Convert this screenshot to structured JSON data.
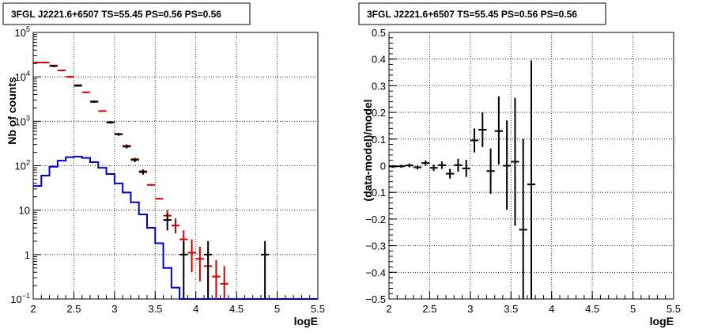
{
  "chart_data": [
    {
      "type": "histogram-with-errorbars",
      "title": "3FGL J2221.6+6507 TS=55.45 PS=0.56 PS=0.56",
      "xlabel": "logE",
      "ylabel": "Nb of counts",
      "xlim": [
        2,
        5.5
      ],
      "ylim": [
        0.1,
        100000
      ],
      "log_y": true,
      "grid": true,
      "x_ticks": [
        "2",
        "2.5",
        "3",
        "3.5",
        "4",
        "4.5",
        "5",
        "5.5"
      ],
      "y_ticks": [
        {
          "value": 0.1,
          "base": "10",
          "exp": "−1"
        },
        {
          "value": 1,
          "label": "1"
        },
        {
          "value": 10,
          "label": "10"
        },
        {
          "value": 100,
          "base": "10",
          "exp": "2"
        },
        {
          "value": 1000,
          "base": "10",
          "exp": "3"
        },
        {
          "value": 10000,
          "base": "10",
          "exp": "4"
        },
        {
          "value": 100000,
          "base": "10",
          "exp": "5"
        }
      ],
      "bin_edges": [
        2.0,
        2.1,
        2.2,
        2.3,
        2.4,
        2.5,
        2.6,
        2.7,
        2.8,
        2.9,
        3.0,
        3.1,
        3.2,
        3.3,
        3.4,
        3.5,
        3.6,
        3.7,
        3.8,
        3.9,
        4.0,
        4.1,
        4.2,
        4.3,
        4.4,
        4.5,
        4.6,
        4.7,
        4.8,
        4.9,
        5.0,
        5.1,
        5.2,
        5.3,
        5.4,
        5.5
      ],
      "series": [
        {
          "color": "#0000cc",
          "style": "step",
          "values": [
            35,
            60,
            95,
            130,
            155,
            160,
            150,
            120,
            90,
            65,
            40,
            25,
            15,
            8,
            4,
            1.8,
            0.5,
            0.18,
            0.1,
            0.1,
            0.1,
            0.1,
            0.1,
            0.1,
            0.1,
            0.1,
            0.1,
            0.1,
            0.1,
            0.1,
            0.1,
            0.1,
            0.1,
            0.1,
            0.1
          ]
        },
        {
          "color": "#cc0000",
          "style": "errorbar",
          "points": [
            {
              "x": 2.05,
              "y": 21000
            },
            {
              "x": 2.15,
              "y": 21000
            },
            {
              "x": 2.25,
              "y": 18000
            },
            {
              "x": 2.35,
              "y": 14000
            },
            {
              "x": 2.45,
              "y": 10000
            },
            {
              "x": 2.55,
              "y": 6500
            },
            {
              "x": 2.65,
              "y": 4500
            },
            {
              "x": 2.75,
              "y": 2800
            },
            {
              "x": 2.85,
              "y": 1700
            },
            {
              "x": 2.95,
              "y": 950
            },
            {
              "x": 3.05,
              "y": 520
            },
            {
              "x": 3.15,
              "y": 280
            },
            {
              "x": 3.25,
              "y": 140
            },
            {
              "x": 3.35,
              "y": 75
            },
            {
              "x": 3.45,
              "y": 37
            },
            {
              "x": 3.55,
              "y": 18
            },
            {
              "x": 3.65,
              "y": 7.5,
              "lo": 5.5,
              "hi": 10
            },
            {
              "x": 3.75,
              "y": 4.5,
              "lo": 3,
              "hi": 6.5
            },
            {
              "x": 3.85,
              "y": 2.2,
              "lo": 1,
              "hi": 3.5
            },
            {
              "x": 3.95,
              "y": 1.1,
              "lo": 0.4,
              "hi": 2.2
            },
            {
              "x": 4.05,
              "y": 0.8,
              "lo": 0.25,
              "hi": 1.5
            },
            {
              "x": 4.15,
              "y": 0.55,
              "lo": 0.15,
              "hi": 1.2
            },
            {
              "x": 4.25,
              "y": 0.32,
              "lo": 0.1,
              "hi": 0.75
            },
            {
              "x": 4.35,
              "y": 0.22,
              "lo": 0.1,
              "hi": 0.55
            }
          ]
        },
        {
          "color": "#000000",
          "style": "errorbar",
          "points": [
            {
              "x": 2.25,
              "y": 17500,
              "lo": 16500,
              "hi": 18500
            },
            {
              "x": 2.55,
              "y": 6300,
              "lo": 6000,
              "hi": 6600
            },
            {
              "x": 2.75,
              "y": 2750,
              "lo": 2600,
              "hi": 2900
            },
            {
              "x": 2.95,
              "y": 940,
              "lo": 880,
              "hi": 1000
            },
            {
              "x": 3.05,
              "y": 510,
              "lo": 470,
              "hi": 550
            },
            {
              "x": 3.15,
              "y": 270,
              "lo": 245,
              "hi": 300
            },
            {
              "x": 3.25,
              "y": 135,
              "lo": 120,
              "hi": 150
            },
            {
              "x": 3.35,
              "y": 72,
              "lo": 63,
              "hi": 82
            },
            {
              "x": 3.65,
              "y": 6,
              "lo": 3.5,
              "hi": 8.5
            },
            {
              "x": 3.85,
              "y": 1,
              "lo": 0.1,
              "hi": 2
            },
            {
              "x": 4.15,
              "y": 1,
              "lo": 0.1,
              "hi": 2
            },
            {
              "x": 4.85,
              "y": 1,
              "lo": 0.1,
              "hi": 2
            }
          ]
        }
      ]
    },
    {
      "type": "scatter-with-errorbars",
      "title": "3FGL J2221.6+6507 TS=55.45 PS=0.56 PS=0.56",
      "xlabel": "logE",
      "ylabel": "(data-model)/model",
      "xlim": [
        2,
        5.5
      ],
      "ylim": [
        -0.5,
        0.5
      ],
      "grid": true,
      "x_ticks": [
        "2",
        "2.5",
        "3",
        "3.5",
        "4",
        "4.5",
        "5",
        "5.5"
      ],
      "y_ticks": [
        "−0.5",
        "−0.4",
        "−0.3",
        "−0.2",
        "−0.1",
        "0",
        "0.1",
        "0.2",
        "0.3",
        "0.4",
        "0.5"
      ],
      "series": [
        {
          "color": "#000000",
          "style": "errorbar",
          "points": [
            {
              "x": 2.05,
              "y": -0.003,
              "lo": -0.008,
              "hi": 0.002
            },
            {
              "x": 2.15,
              "y": -0.002,
              "lo": -0.008,
              "hi": 0.004
            },
            {
              "x": 2.25,
              "y": 0.001,
              "lo": -0.006,
              "hi": 0.008
            },
            {
              "x": 2.35,
              "y": -0.006,
              "lo": -0.014,
              "hi": 0.002
            },
            {
              "x": 2.45,
              "y": 0.01,
              "lo": 0.0,
              "hi": 0.02
            },
            {
              "x": 2.55,
              "y": -0.008,
              "lo": -0.02,
              "hi": 0.004
            },
            {
              "x": 2.65,
              "y": 0.002,
              "lo": -0.012,
              "hi": 0.016
            },
            {
              "x": 2.75,
              "y": -0.03,
              "lo": -0.048,
              "hi": -0.012
            },
            {
              "x": 2.85,
              "y": 0.002,
              "lo": -0.022,
              "hi": 0.026
            },
            {
              "x": 2.95,
              "y": -0.01,
              "lo": -0.042,
              "hi": 0.022
            },
            {
              "x": 3.05,
              "y": 0.095,
              "lo": 0.05,
              "hi": 0.14
            },
            {
              "x": 3.15,
              "y": 0.135,
              "lo": 0.07,
              "hi": 0.2
            },
            {
              "x": 3.25,
              "y": -0.02,
              "lo": -0.105,
              "hi": 0.065
            },
            {
              "x": 3.35,
              "y": 0.13,
              "lo": 0.005,
              "hi": 0.26
            },
            {
              "x": 3.45,
              "y": 0.0,
              "lo": -0.165,
              "hi": 0.17
            },
            {
              "x": 3.55,
              "y": 0.015,
              "lo": -0.225,
              "hi": 0.255
            },
            {
              "x": 3.65,
              "y": -0.24,
              "lo": -0.5,
              "hi": 0.1
            },
            {
              "x": 3.75,
              "y": -0.07,
              "lo": -0.5,
              "hi": 0.395
            }
          ]
        }
      ]
    }
  ]
}
